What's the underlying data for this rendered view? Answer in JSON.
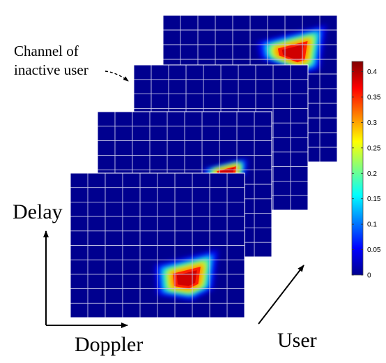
{
  "annotation": {
    "line1": "Channel of",
    "line2": "inactive user"
  },
  "axes": {
    "delay_label": "Delay",
    "doppler_label": "Doppler",
    "user_label": "User"
  },
  "colorbar": {
    "colormap": "jet",
    "range": [
      0,
      0.42
    ],
    "tick_labels": [
      "0.4",
      "0.35",
      "0.3",
      "0.25",
      "0.2",
      "0.15",
      "0.1",
      "0.05",
      "0"
    ],
    "tick_values": [
      0.4,
      0.35,
      0.3,
      0.25,
      0.2,
      0.15,
      0.1,
      0.05,
      0
    ]
  },
  "grid": {
    "rows": 10,
    "cols": 10,
    "line_color": "#c8c8e8"
  },
  "colors": {
    "background_level": "#00008f",
    "arrow": "#000000"
  },
  "layers": [
    {
      "name": "user-layer-4",
      "active": true,
      "peak_value": 0.42
    },
    {
      "name": "user-layer-3",
      "active": false,
      "peak_value": 0
    },
    {
      "name": "user-layer-2",
      "active": true,
      "peak_value": 0.42
    },
    {
      "name": "user-layer-1",
      "active": true,
      "peak_value": 0.42
    }
  ]
}
